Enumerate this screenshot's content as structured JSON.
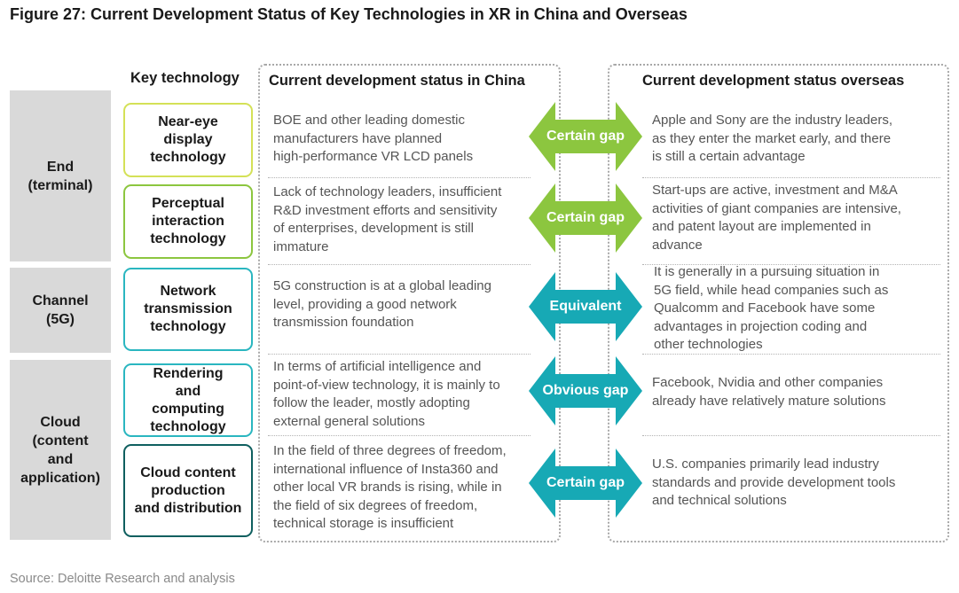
{
  "title": "Figure 27: Current Development Status of Key Technologies in XR in China and Overseas",
  "headers": {
    "key_technology": "Key technology",
    "china": "Current development status in China",
    "overseas": "Current development status overseas"
  },
  "groups": [
    {
      "label": "End\n(terminal)"
    },
    {
      "label": "Channel\n(5G)"
    },
    {
      "label": "Cloud\n(content\nand\napplication)"
    }
  ],
  "rows": [
    {
      "technology": "Near-eye\ndisplay\ntechnology",
      "china": "BOE and other leading domestic\nmanufacturers have planned\nhigh-performance VR LCD panels",
      "comparison": "Certain gap",
      "overseas": "Apple and Sony are the industry leaders,\nas they enter the market early, and there\nis still a certain advantage"
    },
    {
      "technology": "Perceptual\ninteraction\ntechnology",
      "china": "Lack of technology leaders, insufficient\nR&D investment efforts and sensitivity\nof enterprises, development is still\nimmature",
      "comparison": "Certain gap",
      "overseas": "Start-ups are active, investment and M&A\nactivities of giant companies are intensive,\nand patent layout are implemented in\nadvance"
    },
    {
      "technology": "Network\ntransmission\ntechnology",
      "china": "5G construction is at a global leading\nlevel, providing a good network\ntransmission foundation",
      "comparison": "Equivalent",
      "overseas": "It is generally in a pursuing situation in\n5G field, while head companies such as\nQualcomm and Facebook have some\nadvantages in projection coding and\nother technologies"
    },
    {
      "technology": "Rendering\nand\ncomputing\ntechnology",
      "china": "In terms of artificial intelligence and\npoint-of-view technology, it is mainly to\nfollow the leader, mostly adopting\nexternal general solutions",
      "comparison": "Obvious gap",
      "overseas": "Facebook, Nvidia and other companies\nalready have relatively mature solutions"
    },
    {
      "technology": "Cloud content\nproduction\nand distribution",
      "china": "In the field of three degrees of freedom,\ninternational influence of Insta360 and\nother local VR brands is rising, while in\nthe field of six degrees of freedom,\ntechnical storage is insufficient",
      "comparison": "Certain gap",
      "overseas": "U.S. companies primarily lead industry\nstandards and provide development tools\nand technical solutions"
    }
  ],
  "colors": {
    "green_arrow": "#8cc63f",
    "teal_arrow": "#17a9b5",
    "yellow_green_border": "#d4e157",
    "teal_border": "#2ab6c0",
    "dark_teal_border": "#0f5f5f",
    "group_bg": "#d9d9d9"
  },
  "source": "Source: Deloitte Research and analysis"
}
